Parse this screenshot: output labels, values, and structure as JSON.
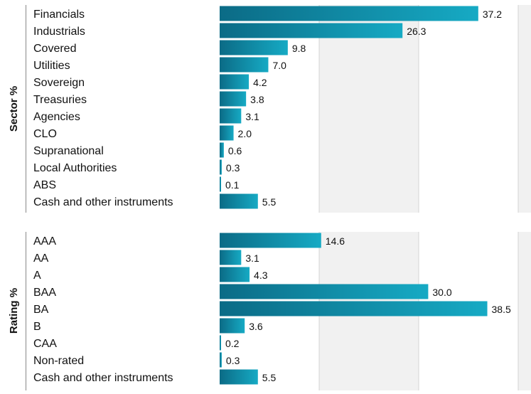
{
  "chart_data": [
    {
      "type": "bar",
      "orientation": "horizontal",
      "ylabel": "Sector %",
      "categories": [
        "Financials",
        "Industrials",
        "Covered",
        "Utilities",
        "Sovereign",
        "Treasuries",
        "Agencies",
        "CLO",
        "Supranational",
        "Local Authorities",
        "ABS",
        "Cash and other instruments"
      ],
      "values": [
        37.2,
        26.3,
        9.8,
        7.0,
        4.2,
        3.8,
        3.1,
        2.0,
        0.6,
        0.3,
        0.1,
        5.5
      ],
      "data_labels": [
        "37.2",
        "26.3",
        "9.8",
        "7.0",
        "4.2",
        "3.8",
        "3.1",
        "2.0",
        "0.6",
        "0.3",
        "0.1",
        "5.5"
      ],
      "xlim": [
        0,
        40
      ],
      "grid": true
    },
    {
      "type": "bar",
      "orientation": "horizontal",
      "ylabel": "Rating %",
      "categories": [
        "AAA",
        "AA",
        "A",
        "BAA",
        "BA",
        "B",
        "CAA",
        "Non-rated",
        "Cash and other instruments"
      ],
      "values": [
        14.6,
        3.1,
        4.3,
        30.0,
        38.5,
        3.6,
        0.2,
        0.3,
        5.5
      ],
      "data_labels": [
        "14.6",
        "3.1",
        "4.3",
        "30.0",
        "38.5",
        "3.6",
        "0.2",
        "0.3",
        "5.5"
      ],
      "xlim": [
        0,
        40
      ],
      "grid": true
    }
  ],
  "colors": {
    "bar_dark": "#0b6b86",
    "bar_light": "#16aac4",
    "band_fill": "#f1f1f1",
    "grid_line": "#d4d4d4",
    "axis_line": "#888888",
    "text": "#111111"
  }
}
